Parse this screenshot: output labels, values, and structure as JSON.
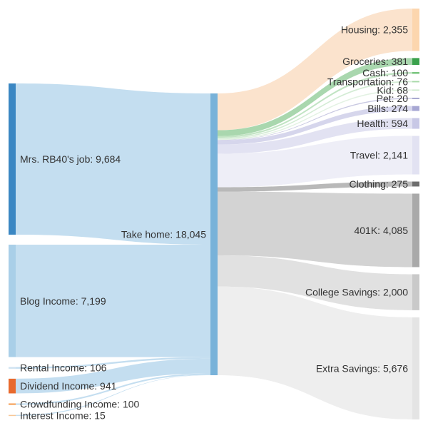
{
  "chart_data": {
    "type": "sankey",
    "title": "",
    "hub": {
      "name": "Take home",
      "value": 18045,
      "color": "#78b2d9"
    },
    "sources": [
      {
        "name": "Mrs. RB40's job",
        "value": 9684,
        "color": "#3b87c3",
        "flow": "#c4def0"
      },
      {
        "name": "Blog Income",
        "value": 7199,
        "color": "#a9cfe8",
        "flow": "#c4def0"
      },
      {
        "name": "Rental Income",
        "value": 106,
        "color": "#cfe2f1",
        "flow": "#c4def0"
      },
      {
        "name": "Dividend Income",
        "value": 941,
        "color": "#e86a2e",
        "flow": "#c4def0"
      },
      {
        "name": "Crowdfunding Income",
        "value": 100,
        "color": "#f4a15a",
        "flow": "#c4def0"
      },
      {
        "name": "Interest Income",
        "value": 15,
        "color": "#f7c797",
        "flow": "#c4def0"
      }
    ],
    "targets": [
      {
        "name": "Housing",
        "value": 2355,
        "color": "#fcd6ae",
        "flow": "#fbe3cd"
      },
      {
        "name": "Groceries",
        "value": 381,
        "color": "#3aa14c",
        "flow": "#a9d7ae"
      },
      {
        "name": "Cash",
        "value": 100,
        "color": "#79c57e",
        "flow": "#c1e4c3"
      },
      {
        "name": "Transportation",
        "value": 76,
        "color": "#a7d9a8",
        "flow": "#d4ecd5"
      },
      {
        "name": "Kid",
        "value": 68,
        "color": "#cdeacc",
        "flow": "#e3f2e3"
      },
      {
        "name": "Pet",
        "value": 20,
        "color": "#8a8ac0",
        "flow": "#c9c9e2"
      },
      {
        "name": "Bills",
        "value": 274,
        "color": "#a7a7d3",
        "flow": "#d6d6ec"
      },
      {
        "name": "Health",
        "value": 594,
        "color": "#c8c8e6",
        "flow": "#e2e2f2"
      },
      {
        "name": "Travel",
        "value": 2141,
        "color": "#e2e2f2",
        "flow": "#eeeef7"
      },
      {
        "name": "Clothing",
        "value": 275,
        "color": "#6d6d6d",
        "flow": "#b9b9b9"
      },
      {
        "name": "401K",
        "value": 4085,
        "color": "#a9a9a9",
        "flow": "#d3d3d3"
      },
      {
        "name": "College Savings",
        "value": 2000,
        "color": "#c9c9c9",
        "flow": "#e1e1e1"
      },
      {
        "name": "Extra Savings",
        "value": 5676,
        "color": "#e4e4e4",
        "flow": "#eeeeee"
      }
    ]
  }
}
